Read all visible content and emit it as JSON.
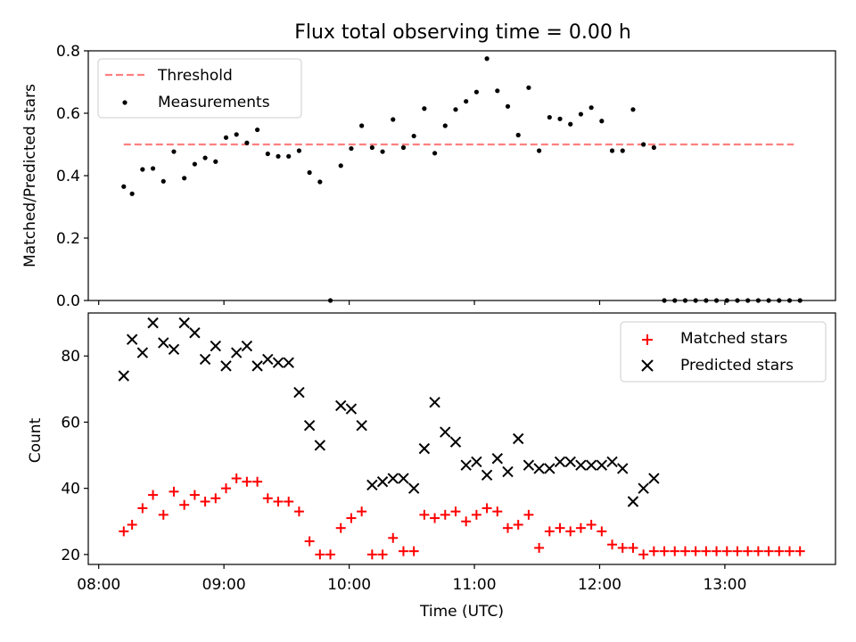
{
  "title": "Flux total observing time = 0.00 h",
  "chart_data": [
    {
      "type": "scatter",
      "panel": "top",
      "ylabel": "Matched/Predicted stars",
      "xlabel": "",
      "ylim": [
        0,
        0.8
      ],
      "yticks": [
        0.0,
        0.2,
        0.4,
        0.6,
        0.8
      ],
      "ytick_labels": [
        "0.0",
        "0.2",
        "0.4",
        "0.6",
        "0.8"
      ],
      "legend_position": "top-left",
      "threshold": {
        "name": "Threshold",
        "y": 0.5,
        "x_start": "08:12",
        "x_end": "13:33",
        "color": "#ff7f7f",
        "style": "dashed"
      },
      "series": [
        {
          "name": "Measurements",
          "marker": "dot",
          "color": "#000000",
          "points": [
            [
              "08:12",
              0.365
            ],
            [
              "08:16",
              0.342
            ],
            [
              "08:21",
              0.42
            ],
            [
              "08:26",
              0.423
            ],
            [
              "08:31",
              0.382
            ],
            [
              "08:36",
              0.477
            ],
            [
              "08:41",
              0.392
            ],
            [
              "08:46",
              0.437
            ],
            [
              "08:51",
              0.457
            ],
            [
              "08:56",
              0.445
            ],
            [
              "09:01",
              0.522
            ],
            [
              "09:06",
              0.532
            ],
            [
              "09:11",
              0.505
            ],
            [
              "09:16",
              0.547
            ],
            [
              "09:21",
              0.47
            ],
            [
              "09:26",
              0.462
            ],
            [
              "09:31",
              0.462
            ],
            [
              "09:36",
              0.48
            ],
            [
              "09:41",
              0.41
            ],
            [
              "09:46",
              0.38
            ],
            [
              "09:51",
              0.0
            ],
            [
              "09:56",
              0.432
            ],
            [
              "10:01",
              0.487
            ],
            [
              "10:06",
              0.56
            ],
            [
              "10:11",
              0.49
            ],
            [
              "10:16",
              0.477
            ],
            [
              "10:21",
              0.58
            ],
            [
              "10:26",
              0.49
            ],
            [
              "10:31",
              0.527
            ],
            [
              "10:36",
              0.615
            ],
            [
              "10:41",
              0.472
            ],
            [
              "10:46",
              0.56
            ],
            [
              "10:51",
              0.612
            ],
            [
              "10:56",
              0.638
            ],
            [
              "11:01",
              0.668
            ],
            [
              "11:06",
              0.775
            ],
            [
              "11:11",
              0.672
            ],
            [
              "11:16",
              0.622
            ],
            [
              "11:21",
              0.53
            ],
            [
              "11:26",
              0.682
            ],
            [
              "11:31",
              0.48
            ],
            [
              "11:36",
              0.587
            ],
            [
              "11:41",
              0.582
            ],
            [
              "11:46",
              0.565
            ],
            [
              "11:51",
              0.597
            ],
            [
              "11:56",
              0.618
            ],
            [
              "12:01",
              0.575
            ],
            [
              "12:06",
              0.48
            ],
            [
              "12:11",
              0.48
            ],
            [
              "12:16",
              0.612
            ],
            [
              "12:21",
              0.5
            ],
            [
              "12:26",
              0.49
            ],
            [
              "12:31",
              0.0
            ],
            [
              "12:36",
              0.0
            ],
            [
              "12:41",
              0.0
            ],
            [
              "12:46",
              0.0
            ],
            [
              "12:51",
              0.0
            ],
            [
              "12:56",
              0.0
            ],
            [
              "13:01",
              0.0
            ],
            [
              "13:06",
              0.0
            ],
            [
              "13:11",
              0.0
            ],
            [
              "13:16",
              0.0
            ],
            [
              "13:21",
              0.0
            ],
            [
              "13:26",
              0.0
            ],
            [
              "13:31",
              0.0
            ],
            [
              "13:36",
              0.0
            ]
          ]
        }
      ]
    },
    {
      "type": "scatter",
      "panel": "bottom",
      "ylabel": "Count",
      "xlabel": "Time (UTC)",
      "ylim": [
        17,
        93
      ],
      "yticks": [
        20,
        40,
        60,
        80
      ],
      "ytick_labels": [
        "20",
        "40",
        "60",
        "80"
      ],
      "xticks": [
        "08:00",
        "09:00",
        "10:00",
        "11:00",
        "12:00",
        "13:00"
      ],
      "xlim": [
        "07:55",
        "13:53"
      ],
      "legend_position": "top-right",
      "series": [
        {
          "name": "Matched stars",
          "marker": "plus",
          "color": "#ff0000",
          "points": [
            [
              "08:12",
              27
            ],
            [
              "08:16",
              29
            ],
            [
              "08:21",
              34
            ],
            [
              "08:26",
              38
            ],
            [
              "08:31",
              32
            ],
            [
              "08:36",
              39
            ],
            [
              "08:41",
              35
            ],
            [
              "08:46",
              38
            ],
            [
              "08:51",
              36
            ],
            [
              "08:56",
              37
            ],
            [
              "09:01",
              40
            ],
            [
              "09:06",
              43
            ],
            [
              "09:11",
              42
            ],
            [
              "09:16",
              42
            ],
            [
              "09:21",
              37
            ],
            [
              "09:26",
              36
            ],
            [
              "09:31",
              36
            ],
            [
              "09:36",
              33
            ],
            [
              "09:41",
              24
            ],
            [
              "09:46",
              20
            ],
            [
              "09:51",
              20
            ],
            [
              "09:56",
              28
            ],
            [
              "10:01",
              31
            ],
            [
              "10:06",
              33
            ],
            [
              "10:11",
              20
            ],
            [
              "10:16",
              20
            ],
            [
              "10:21",
              25
            ],
            [
              "10:26",
              21
            ],
            [
              "10:31",
              21
            ],
            [
              "10:36",
              32
            ],
            [
              "10:41",
              31
            ],
            [
              "10:46",
              32
            ],
            [
              "10:51",
              33
            ],
            [
              "10:56",
              30
            ],
            [
              "11:01",
              32
            ],
            [
              "11:06",
              34
            ],
            [
              "11:11",
              33
            ],
            [
              "11:16",
              28
            ],
            [
              "11:21",
              29
            ],
            [
              "11:26",
              32
            ],
            [
              "11:31",
              22
            ],
            [
              "11:36",
              27
            ],
            [
              "11:41",
              28
            ],
            [
              "11:46",
              27
            ],
            [
              "11:51",
              28
            ],
            [
              "11:56",
              29
            ],
            [
              "12:01",
              27
            ],
            [
              "12:06",
              23
            ],
            [
              "12:11",
              22
            ],
            [
              "12:16",
              22
            ],
            [
              "12:21",
              20
            ],
            [
              "12:26",
              21
            ],
            [
              "12:31",
              21
            ],
            [
              "12:36",
              21
            ],
            [
              "12:41",
              21
            ],
            [
              "12:46",
              21
            ],
            [
              "12:51",
              21
            ],
            [
              "12:56",
              21
            ],
            [
              "13:01",
              21
            ],
            [
              "13:06",
              21
            ],
            [
              "13:11",
              21
            ],
            [
              "13:16",
              21
            ],
            [
              "13:21",
              21
            ],
            [
              "13:26",
              21
            ],
            [
              "13:31",
              21
            ],
            [
              "13:36",
              21
            ]
          ]
        },
        {
          "name": "Predicted stars",
          "marker": "cross",
          "color": "#000000",
          "points": [
            [
              "08:12",
              74
            ],
            [
              "08:16",
              85
            ],
            [
              "08:21",
              81
            ],
            [
              "08:26",
              90
            ],
            [
              "08:31",
              84
            ],
            [
              "08:36",
              82
            ],
            [
              "08:41",
              90
            ],
            [
              "08:46",
              87
            ],
            [
              "08:51",
              79
            ],
            [
              "08:56",
              83
            ],
            [
              "09:01",
              77
            ],
            [
              "09:06",
              81
            ],
            [
              "09:11",
              83
            ],
            [
              "09:16",
              77
            ],
            [
              "09:21",
              79
            ],
            [
              "09:26",
              78
            ],
            [
              "09:31",
              78
            ],
            [
              "09:36",
              69
            ],
            [
              "09:41",
              59
            ],
            [
              "09:46",
              53
            ],
            [
              "09:56",
              65
            ],
            [
              "10:01",
              64
            ],
            [
              "10:06",
              59
            ],
            [
              "10:11",
              41
            ],
            [
              "10:16",
              42
            ],
            [
              "10:21",
              43
            ],
            [
              "10:26",
              43
            ],
            [
              "10:31",
              40
            ],
            [
              "10:36",
              52
            ],
            [
              "10:41",
              66
            ],
            [
              "10:46",
              57
            ],
            [
              "10:51",
              54
            ],
            [
              "10:56",
              47
            ],
            [
              "11:01",
              48
            ],
            [
              "11:06",
              44
            ],
            [
              "11:11",
              49
            ],
            [
              "11:16",
              45
            ],
            [
              "11:21",
              55
            ],
            [
              "11:26",
              47
            ],
            [
              "11:31",
              46
            ],
            [
              "11:36",
              46
            ],
            [
              "11:41",
              48
            ],
            [
              "11:46",
              48
            ],
            [
              "11:51",
              47
            ],
            [
              "11:56",
              47
            ],
            [
              "12:01",
              47
            ],
            [
              "12:06",
              48
            ],
            [
              "12:11",
              46
            ],
            [
              "12:16",
              36
            ],
            [
              "12:21",
              40
            ],
            [
              "12:26",
              43
            ]
          ]
        }
      ]
    }
  ]
}
